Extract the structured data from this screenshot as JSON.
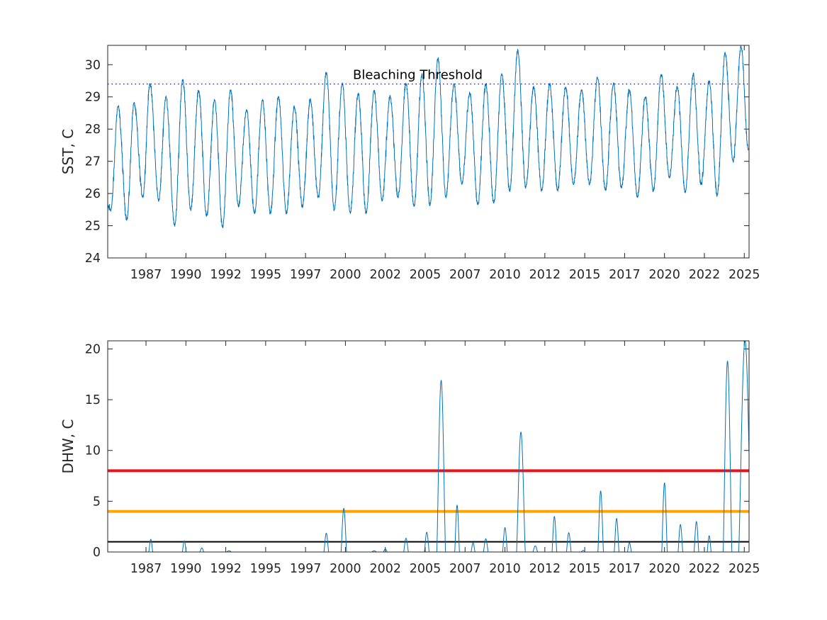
{
  "chart_data": [
    {
      "type": "line",
      "ylabel": "SST, C",
      "xlabel": "",
      "title": "",
      "xlim": [
        1984.9,
        2025.1
      ],
      "ylim": [
        24,
        30.6
      ],
      "yticks": [
        24,
        25,
        26,
        27,
        28,
        29,
        30
      ],
      "xtick_labels": [
        "1987",
        "1990",
        "1992",
        "1995",
        "1997",
        "2000",
        "2002",
        "2005",
        "2007",
        "2010",
        "2012",
        "2015",
        "2017",
        "2020",
        "2022",
        "2025"
      ],
      "xtick_values": [
        1987.3,
        1989.8,
        1992.3,
        1994.8,
        1997.3,
        1999.8,
        2002.3,
        2004.8,
        2007.3,
        2009.8,
        2012.3,
        2014.8,
        2017.3,
        2019.8,
        2022.3,
        2024.8
      ],
      "grid": false,
      "series": [
        {
          "color": "#0072bd",
          "seasonal_peaks": [
            {
              "x": 1985.55,
              "y": 28.7
            },
            {
              "x": 1986.55,
              "y": 28.8
            },
            {
              "x": 1987.55,
              "y": 29.4
            },
            {
              "x": 1988.55,
              "y": 29.0
            },
            {
              "x": 1989.6,
              "y": 29.55
            },
            {
              "x": 1990.6,
              "y": 29.2
            },
            {
              "x": 1991.6,
              "y": 28.9
            },
            {
              "x": 1992.6,
              "y": 29.2
            },
            {
              "x": 1993.6,
              "y": 28.6
            },
            {
              "x": 1994.6,
              "y": 28.9
            },
            {
              "x": 1995.6,
              "y": 29.0
            },
            {
              "x": 1996.6,
              "y": 28.7
            },
            {
              "x": 1997.6,
              "y": 28.9
            },
            {
              "x": 1998.6,
              "y": 29.75
            },
            {
              "x": 1999.6,
              "y": 29.4
            },
            {
              "x": 2000.6,
              "y": 29.1
            },
            {
              "x": 2001.6,
              "y": 29.2
            },
            {
              "x": 2002.6,
              "y": 29.0
            },
            {
              "x": 2003.6,
              "y": 29.4
            },
            {
              "x": 2004.6,
              "y": 29.7
            },
            {
              "x": 2005.6,
              "y": 30.2
            },
            {
              "x": 2006.6,
              "y": 29.4
            },
            {
              "x": 2007.6,
              "y": 29.1
            },
            {
              "x": 2008.6,
              "y": 29.4
            },
            {
              "x": 2009.6,
              "y": 29.7
            },
            {
              "x": 2010.6,
              "y": 30.45
            },
            {
              "x": 2011.6,
              "y": 29.3
            },
            {
              "x": 2012.6,
              "y": 29.4
            },
            {
              "x": 2013.6,
              "y": 29.3
            },
            {
              "x": 2014.6,
              "y": 29.2
            },
            {
              "x": 2015.6,
              "y": 29.6
            },
            {
              "x": 2016.6,
              "y": 29.4
            },
            {
              "x": 2017.6,
              "y": 29.2
            },
            {
              "x": 2018.6,
              "y": 29.0
            },
            {
              "x": 2019.6,
              "y": 29.7
            },
            {
              "x": 2020.6,
              "y": 29.3
            },
            {
              "x": 2021.6,
              "y": 29.7
            },
            {
              "x": 2022.6,
              "y": 29.5
            },
            {
              "x": 2023.6,
              "y": 30.35
            },
            {
              "x": 2024.6,
              "y": 30.55
            }
          ],
          "seasonal_troughs": [
            {
              "x": 1985.1,
              "y": 25.5
            },
            {
              "x": 1986.1,
              "y": 25.2
            },
            {
              "x": 1987.1,
              "y": 25.9
            },
            {
              "x": 1988.1,
              "y": 25.8
            },
            {
              "x": 1989.1,
              "y": 25.0
            },
            {
              "x": 1990.1,
              "y": 25.5
            },
            {
              "x": 1991.1,
              "y": 25.3
            },
            {
              "x": 1992.1,
              "y": 24.95
            },
            {
              "x": 1993.1,
              "y": 25.6
            },
            {
              "x": 1994.1,
              "y": 25.4
            },
            {
              "x": 1995.1,
              "y": 25.4
            },
            {
              "x": 1996.1,
              "y": 25.4
            },
            {
              "x": 1997.1,
              "y": 25.6
            },
            {
              "x": 1998.1,
              "y": 25.9
            },
            {
              "x": 1999.1,
              "y": 25.5
            },
            {
              "x": 2000.1,
              "y": 25.4
            },
            {
              "x": 2001.1,
              "y": 25.4
            },
            {
              "x": 2002.1,
              "y": 25.8
            },
            {
              "x": 2003.1,
              "y": 25.9
            },
            {
              "x": 2004.1,
              "y": 25.6
            },
            {
              "x": 2005.1,
              "y": 25.65
            },
            {
              "x": 2006.1,
              "y": 25.9
            },
            {
              "x": 2007.1,
              "y": 26.3
            },
            {
              "x": 2008.1,
              "y": 25.65
            },
            {
              "x": 2009.1,
              "y": 25.7
            },
            {
              "x": 2010.1,
              "y": 26.1
            },
            {
              "x": 2011.1,
              "y": 26.2
            },
            {
              "x": 2012.1,
              "y": 26.1
            },
            {
              "x": 2013.1,
              "y": 26.1
            },
            {
              "x": 2014.1,
              "y": 26.3
            },
            {
              "x": 2015.1,
              "y": 26.3
            },
            {
              "x": 2016.1,
              "y": 26.1
            },
            {
              "x": 2017.1,
              "y": 26.2
            },
            {
              "x": 2018.1,
              "y": 25.9
            },
            {
              "x": 2019.1,
              "y": 26.1
            },
            {
              "x": 2020.1,
              "y": 26.5
            },
            {
              "x": 2021.1,
              "y": 26.05
            },
            {
              "x": 2022.1,
              "y": 26.3
            },
            {
              "x": 2023.1,
              "y": 25.95
            },
            {
              "x": 2024.1,
              "y": 27.0
            }
          ],
          "end": {
            "x": 2025.05,
            "y": 27.4
          }
        }
      ],
      "reference_lines": [
        {
          "y": 29.4,
          "style": "dotted",
          "color": "#0000aa",
          "label": "Bleaching Threshold"
        }
      ]
    },
    {
      "type": "line",
      "ylabel": "DHW, C",
      "xlabel": "",
      "title": "",
      "xlim": [
        1984.9,
        2025.1
      ],
      "ylim": [
        0,
        20.8
      ],
      "yticks": [
        0,
        5,
        10,
        15,
        20
      ],
      "xtick_labels": [
        "1987",
        "1990",
        "1992",
        "1995",
        "1997",
        "2000",
        "2002",
        "2005",
        "2007",
        "2010",
        "2012",
        "2015",
        "2017",
        "2020",
        "2022",
        "2025"
      ],
      "xtick_values": [
        1987.3,
        1989.8,
        1992.3,
        1994.8,
        1997.3,
        1999.8,
        2002.3,
        2004.8,
        2007.3,
        2009.8,
        2012.3,
        2014.8,
        2017.3,
        2019.8,
        2022.3,
        2024.8
      ],
      "grid": false,
      "series": [
        {
          "color": "#0072bd",
          "events": [
            {
              "x": 1987.6,
              "peak": 1.25,
              "width": 0.25
            },
            {
              "x": 1989.7,
              "peak": 1.1,
              "width": 0.25
            },
            {
              "x": 1990.8,
              "peak": 0.4,
              "width": 0.25
            },
            {
              "x": 1992.5,
              "peak": 0.12,
              "width": 0.3
            },
            {
              "x": 1998.6,
              "peak": 1.85,
              "width": 0.3
            },
            {
              "x": 1999.7,
              "peak": 4.3,
              "width": 0.35
            },
            {
              "x": 2001.6,
              "peak": 0.12,
              "width": 0.3
            },
            {
              "x": 2002.3,
              "peak": 0.3,
              "width": 0.25
            },
            {
              "x": 2003.6,
              "peak": 1.35,
              "width": 0.3
            },
            {
              "x": 2004.9,
              "peak": 1.95,
              "width": 0.3
            },
            {
              "x": 2005.8,
              "peak": 16.9,
              "width": 0.55
            },
            {
              "x": 2006.8,
              "peak": 4.6,
              "width": 0.3
            },
            {
              "x": 2007.8,
              "peak": 0.9,
              "width": 0.25
            },
            {
              "x": 2008.6,
              "peak": 1.3,
              "width": 0.3
            },
            {
              "x": 2009.8,
              "peak": 2.4,
              "width": 0.3
            },
            {
              "x": 2010.8,
              "peak": 11.8,
              "width": 0.55
            },
            {
              "x": 2011.7,
              "peak": 0.6,
              "width": 0.3
            },
            {
              "x": 2012.9,
              "peak": 3.5,
              "width": 0.3
            },
            {
              "x": 2013.8,
              "peak": 1.9,
              "width": 0.3
            },
            {
              "x": 2014.7,
              "peak": 0.15,
              "width": 0.25
            },
            {
              "x": 2015.8,
              "peak": 6.0,
              "width": 0.35
            },
            {
              "x": 2016.8,
              "peak": 3.3,
              "width": 0.3
            },
            {
              "x": 2017.6,
              "peak": 0.9,
              "width": 0.25
            },
            {
              "x": 2019.8,
              "peak": 6.8,
              "width": 0.35
            },
            {
              "x": 2020.8,
              "peak": 2.7,
              "width": 0.3
            },
            {
              "x": 2021.8,
              "peak": 3.0,
              "width": 0.3
            },
            {
              "x": 2022.6,
              "peak": 1.6,
              "width": 0.25
            },
            {
              "x": 2023.75,
              "peak": 18.8,
              "width": 0.55
            },
            {
              "x": 2024.85,
              "peak": 20.8,
              "width": 0.8
            }
          ]
        }
      ],
      "reference_lines": [
        {
          "y": 8,
          "style": "solid",
          "color": "#e8141a",
          "width": 4
        },
        {
          "y": 4,
          "style": "solid",
          "color": "#ffa500",
          "width": 4
        },
        {
          "y": 1,
          "style": "solid",
          "color": "#000000",
          "width": 2
        }
      ]
    }
  ]
}
